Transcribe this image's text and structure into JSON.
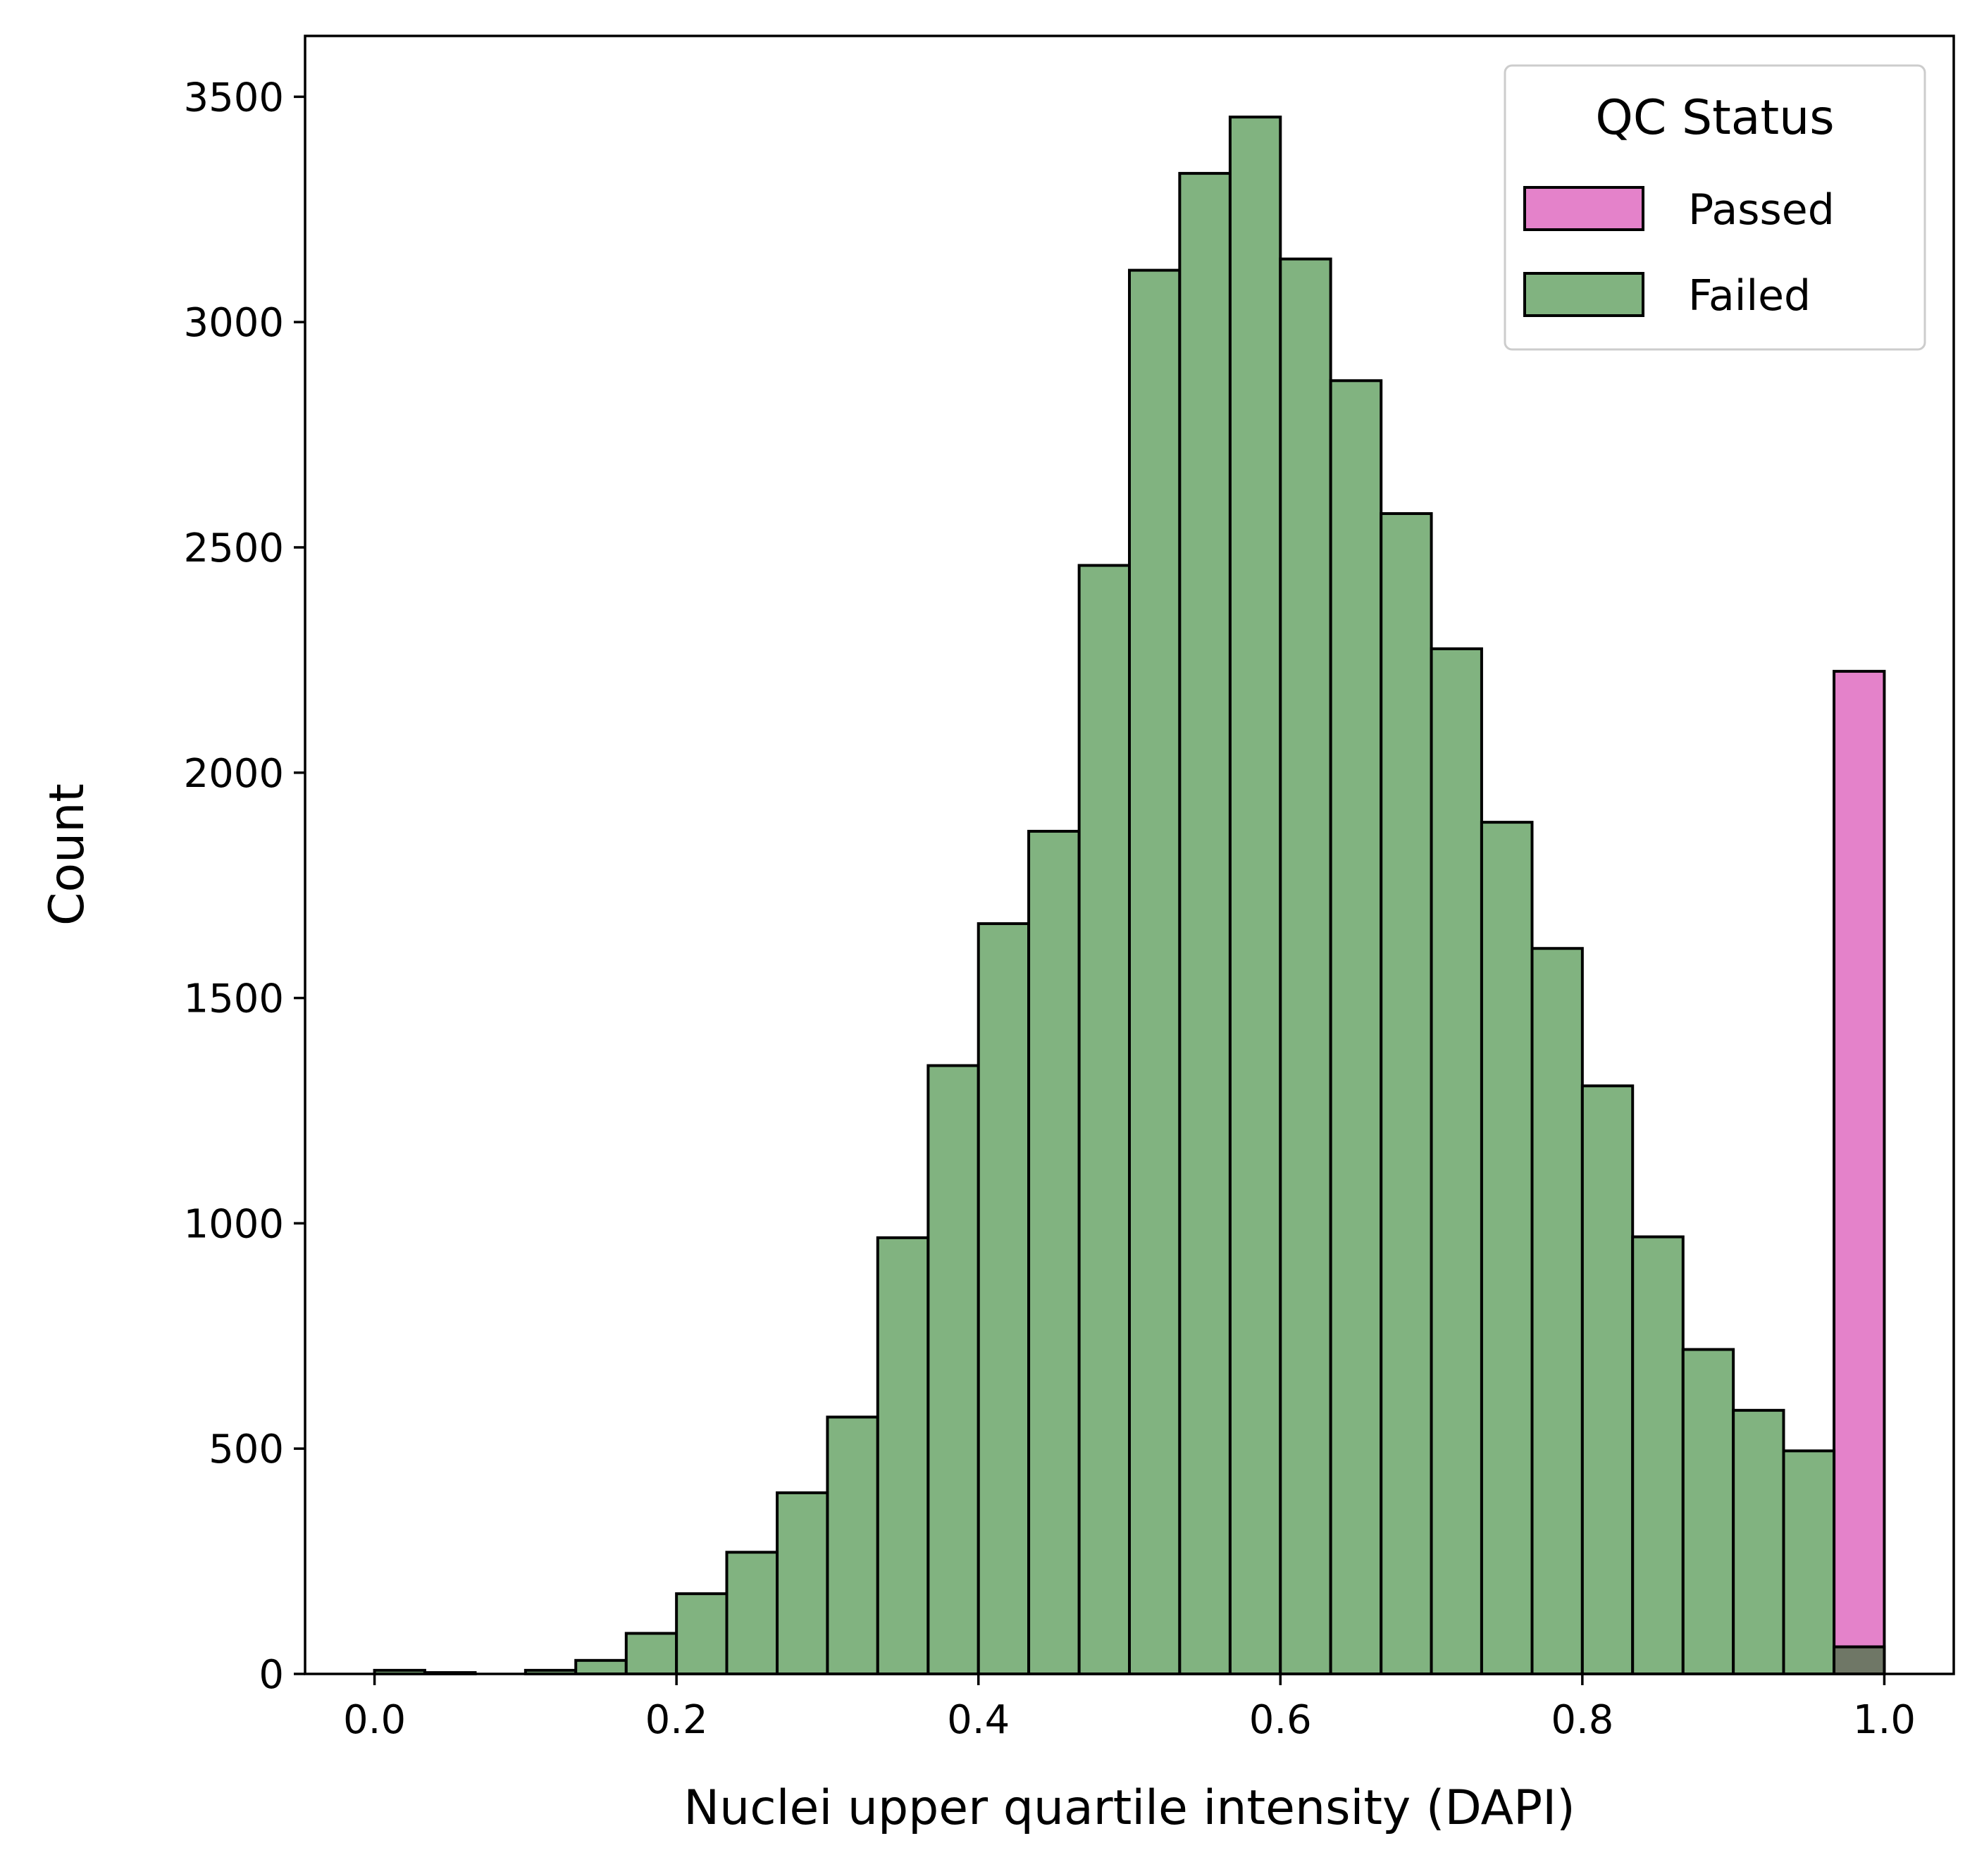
{
  "chart_data": {
    "type": "bar",
    "xlabel": "Nuclei upper quartile intensity (DAPI)",
    "ylabel": "Count",
    "xlim": [
      -0.046,
      1.046
    ],
    "ylim": [
      0,
      3635
    ],
    "xticks": [
      "0.0",
      "0.2",
      "0.4",
      "0.6",
      "0.8",
      "1.0"
    ],
    "yticks": [
      "0",
      "500",
      "1000",
      "1500",
      "2000",
      "2500",
      "3000",
      "3500"
    ],
    "bin_edges": [
      0.0,
      0.0333,
      0.0667,
      0.1,
      0.1333,
      0.1667,
      0.2,
      0.2333,
      0.2667,
      0.3,
      0.3333,
      0.3667,
      0.4,
      0.4333,
      0.4667,
      0.5,
      0.5333,
      0.5667,
      0.6,
      0.6333,
      0.6667,
      0.7,
      0.7333,
      0.7667,
      0.8,
      0.8333,
      0.8667,
      0.9,
      0.9333,
      0.9667,
      1.0
    ],
    "grid": false,
    "legend": {
      "title": "QC Status",
      "position": "top-right"
    },
    "series": [
      {
        "name": "Passed",
        "color": "#e482ca",
        "values": [
          0,
          0,
          0,
          0,
          0,
          0,
          0,
          0,
          0,
          0,
          0,
          0,
          0,
          0,
          0,
          0,
          0,
          0,
          0,
          0,
          0,
          0,
          0,
          0,
          0,
          0,
          0,
          0,
          0,
          2225
        ]
      },
      {
        "name": "Failed",
        "color": "#81b380",
        "values": [
          8,
          3,
          0,
          8,
          30,
          90,
          178,
          270,
          402,
          570,
          968,
          1350,
          1665,
          1870,
          2460,
          3115,
          3330,
          3455,
          3140,
          2870,
          2575,
          2275,
          1890,
          1610,
          1305,
          970,
          720,
          585,
          495,
          60
        ]
      }
    ],
    "overlap_color": "#6f7766"
  }
}
